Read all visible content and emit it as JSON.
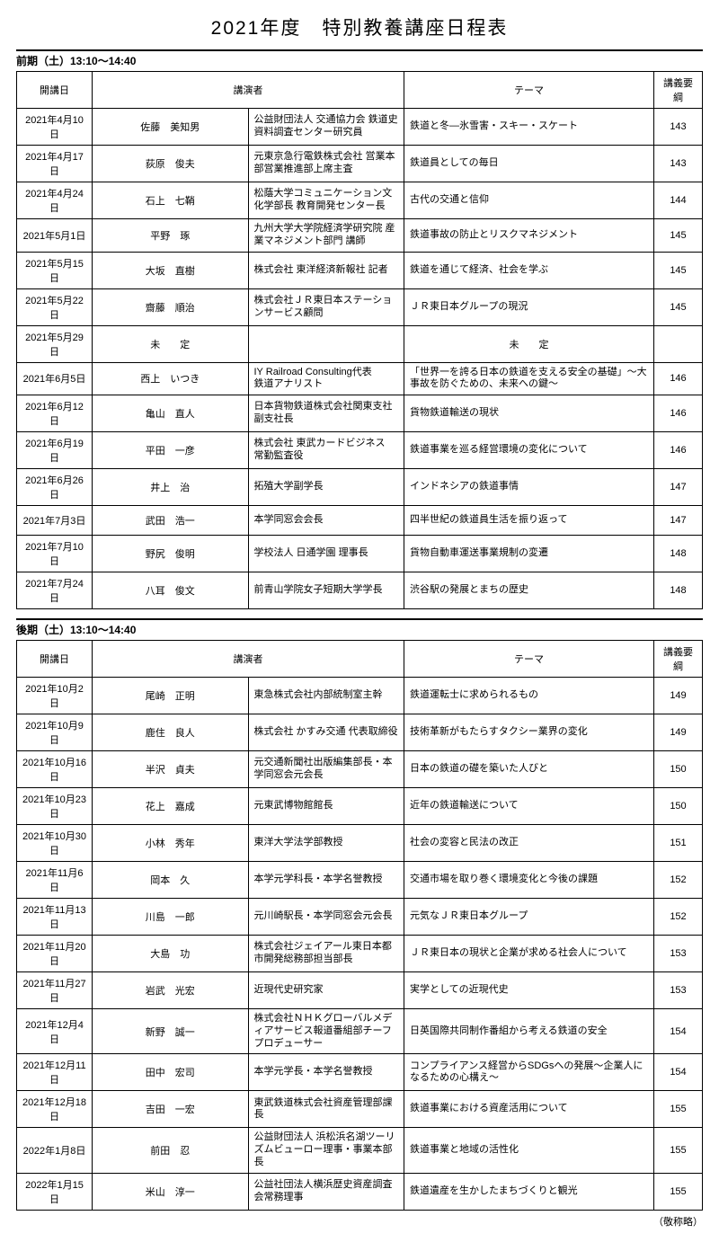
{
  "page_title": "2021年度　特別教養講座日程表",
  "footnote": "（敬称略）",
  "sections": [
    {
      "header": "前期（土）13:10〜14:40",
      "columns": {
        "date": "開講日",
        "lecturer": "講演者",
        "theme": "テーマ",
        "outline": "講義要綱"
      },
      "rows": [
        {
          "date": "2021年4月10日",
          "name": "佐藤　美知男",
          "title": "公益財団法人 交通協力会 鉄道史資料調査センター研究員",
          "theme": "鉄道と冬―氷雪害・スキー・スケート",
          "outline": "143"
        },
        {
          "date": "2021年4月17日",
          "name": "荻原　俊夫",
          "title": "元東京急行電鉄株式会社 営業本部営業推進部上席主査",
          "theme": "鉄道員としての毎日",
          "outline": "143"
        },
        {
          "date": "2021年4月24日",
          "name": "石上　七鞘",
          "title": "松蔭大学コミュニケーション文化学部長 教育開発センター長",
          "theme": "古代の交通と信仰",
          "outline": "144"
        },
        {
          "date": "2021年5月1日",
          "name": "平野　琢",
          "title": "九州大学大学院経済学研究院 産業マネジメント部門 講師",
          "theme": "鉄道事故の防止とリスクマネジメント",
          "outline": "145"
        },
        {
          "date": "2021年5月15日",
          "name": "大坂　直樹",
          "title": "株式会社 東洋経済新報社 記者",
          "theme": "鉄道を通じて経済、社会を学ぶ",
          "outline": "145"
        },
        {
          "date": "2021年5月22日",
          "name": "齋藤　順治",
          "title": "株式会社ＪＲ東日本ステーションサービス顧問",
          "theme": "ＪＲ東日本グループの現況",
          "outline": "145"
        },
        {
          "date": "2021年5月29日",
          "name": "未　　定",
          "title": "",
          "theme": "未　　定",
          "theme_center": true,
          "outline": ""
        },
        {
          "date": "2021年6月5日",
          "name": "西上　いつき",
          "title": "IY Railroad Consulting代表\n鉄道アナリスト",
          "theme": "「世界一を誇る日本の鉄道を支える安全の基礎」〜大事故を防ぐための、未来への鍵〜",
          "outline": "146"
        },
        {
          "date": "2021年6月12日",
          "name": "亀山　直人",
          "title": "日本貨物鉄道株式会社関東支社副支社長",
          "theme": "貨物鉄道輸送の現状",
          "outline": "146"
        },
        {
          "date": "2021年6月19日",
          "name": "平田　一彦",
          "title": "株式会社 東武カードビジネス\n常勤監査役",
          "theme": "鉄道事業を巡る経営環境の変化について",
          "outline": "146"
        },
        {
          "date": "2021年6月26日",
          "name": "井上　治",
          "title": "拓殖大学副学長",
          "theme": "インドネシアの鉄道事情",
          "outline": "147"
        },
        {
          "date": "2021年7月3日",
          "name": "武田　浩一",
          "title": "本学同窓会会長",
          "theme": "四半世紀の鉄道員生活を振り返って",
          "outline": "147"
        },
        {
          "date": "2021年7月10日",
          "name": "野尻　俊明",
          "title": "学校法人 日通学園 理事長",
          "theme": "貨物自動車運送事業規制の変遷",
          "outline": "148"
        },
        {
          "date": "2021年7月24日",
          "name": "八耳　俊文",
          "title": "前青山学院女子短期大学学長",
          "theme": "渋谷駅の発展とまちの歴史",
          "outline": "148"
        }
      ]
    },
    {
      "header": "後期（土）13:10〜14:40",
      "columns": {
        "date": "開講日",
        "lecturer": "講演者",
        "theme": "テーマ",
        "outline": "講義要綱"
      },
      "rows": [
        {
          "date": "2021年10月2日",
          "name": "尾崎　正明",
          "title": "東急株式会社内部統制室主幹",
          "theme": "鉄道運転士に求められるもの",
          "outline": "149"
        },
        {
          "date": "2021年10月9日",
          "name": "鹿住　良人",
          "title": "株式会社 かすみ交通 代表取締役",
          "theme": "技術革新がもたらすタクシー業界の変化",
          "outline": "149"
        },
        {
          "date": "2021年10月16日",
          "name": "半沢　貞夫",
          "title": "元交通新聞社出版編集部長・本学同窓会元会長",
          "theme": "日本の鉄道の礎を築いた人びと",
          "outline": "150"
        },
        {
          "date": "2021年10月23日",
          "name": "花上　嘉成",
          "title": "元東武博物館館長",
          "theme": "近年の鉄道輸送について",
          "outline": "150"
        },
        {
          "date": "2021年10月30日",
          "name": "小林　秀年",
          "title": "東洋大学法学部教授",
          "theme": "社会の変容と民法の改正",
          "outline": "151"
        },
        {
          "date": "2021年11月6日",
          "name": "岡本　久",
          "title": "本学元学科長・本学名誉教授",
          "theme": "交通市場を取り巻く環境変化と今後の課題",
          "outline": "152"
        },
        {
          "date": "2021年11月13日",
          "name": "川島　一郎",
          "title": "元川崎駅長・本学同窓会元会長",
          "theme": "元気なＪＲ東日本グループ",
          "outline": "152"
        },
        {
          "date": "2021年11月20日",
          "name": "大島　功",
          "title": "株式会社ジェイアール東日本都市開発総務部担当部長",
          "theme": "ＪＲ東日本の現状と企業が求める社会人について",
          "outline": "153"
        },
        {
          "date": "2021年11月27日",
          "name": "岩武　光宏",
          "title": "近現代史研究家",
          "theme": "実学としての近現代史",
          "outline": "153"
        },
        {
          "date": "2021年12月4日",
          "name": "新野　誠一",
          "title": "株式会社ＮＨＫグローバルメディアサービス報道番組部チーフプロデューサー",
          "theme": "日英国際共同制作番組から考える鉄道の安全",
          "outline": "154"
        },
        {
          "date": "2021年12月11日",
          "name": "田中　宏司",
          "title": "本学元学長・本学名誉教授",
          "theme": "コンプライアンス経営からSDGsへの発展〜企業人になるための心構え〜",
          "outline": "154"
        },
        {
          "date": "2021年12月18日",
          "name": "吉田　一宏",
          "title": "東武鉄道株式会社資産管理部課長",
          "theme": "鉄道事業における資産活用について",
          "outline": "155"
        },
        {
          "date": "2022年1月8日",
          "name": "前田　忍",
          "title": "公益財団法人 浜松浜名湖ツーリズムビューロー理事・事業本部長",
          "theme": "鉄道事業と地域の活性化",
          "outline": "155"
        },
        {
          "date": "2022年1月15日",
          "name": "米山　淳一",
          "title": "公益社団法人横浜歴史資産調査会常務理事",
          "theme": "鉄道遺産を生かしたまちづくりと観光",
          "outline": "155"
        }
      ]
    }
  ]
}
